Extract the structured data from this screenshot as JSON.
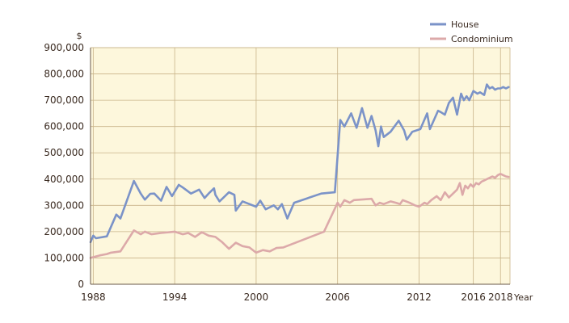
{
  "chart_data": {
    "type": "line",
    "title": "",
    "ylabel": "$",
    "xlabel": "Year",
    "ylim": [
      0,
      900000
    ],
    "xlim": [
      1987.8,
      2018.7
    ],
    "x_ticks": [
      1988,
      1994,
      2000,
      2006,
      2012,
      2016,
      2018
    ],
    "y_ticks": [
      0,
      100000,
      200000,
      300000,
      400000,
      500000,
      600000,
      700000,
      800000,
      900000
    ],
    "y_tick_labels": [
      "0",
      "100,000",
      "200,000",
      "300,000",
      "400,000",
      "500,000",
      "600,000",
      "700,000",
      "800,000",
      "900,000"
    ],
    "x_tick_labels": [
      "1988",
      "1994",
      "2000",
      "2006",
      "2012",
      "2016",
      "2018"
    ],
    "grid": true,
    "legend_position": "top-right",
    "colors": {
      "plot_bg": "#fdf7dc",
      "grid": "#c9b48a",
      "axis": "#6a5a4a"
    },
    "series": [
      {
        "name": "House",
        "color": "#7b93c8",
        "x": [
          1987.8,
          1988.0,
          1988.2,
          1988.5,
          1989.0,
          1989.7,
          1990.0,
          1991.0,
          1991.5,
          1991.8,
          1992.2,
          1992.5,
          1993.0,
          1993.4,
          1993.8,
          1994.3,
          1994.6,
          1995.2,
          1995.8,
          1996.2,
          1996.5,
          1996.9,
          1997.0,
          1997.3,
          1998.0,
          1998.4,
          1998.5,
          1999.0,
          1999.5,
          2000.0,
          2000.3,
          2000.7,
          2000.9,
          2001.3,
          2001.6,
          2001.9,
          2002.3,
          2002.8,
          2004.8,
          2005.8,
          2006.2,
          2006.5,
          2007.0,
          2007.4,
          2007.8,
          2008.2,
          2008.5,
          2008.8,
          2009.0,
          2009.2,
          2009.4,
          2009.9,
          2010.5,
          2010.9,
          2011.1,
          2011.5,
          2012.1,
          2012.6,
          2012.8,
          2013.4,
          2013.6,
          2013.9,
          2014.2,
          2014.5,
          2014.8,
          2015.0,
          2015.1,
          2015.3,
          2015.5,
          2015.7,
          2016.0,
          2016.3,
          2016.5,
          2016.8,
          2017.0,
          2017.2,
          2017.4,
          2017.6,
          2017.8,
          2018.0,
          2018.2,
          2018.4,
          2018.6
        ],
        "values": [
          160000,
          185000,
          175000,
          178000,
          182000,
          265000,
          250000,
          393000,
          345000,
          322000,
          344000,
          345000,
          318000,
          370000,
          335000,
          378000,
          368000,
          345000,
          360000,
          328000,
          345000,
          365000,
          340000,
          315000,
          350000,
          340000,
          280000,
          315000,
          305000,
          295000,
          318000,
          285000,
          290000,
          300000,
          285000,
          305000,
          250000,
          310000,
          345000,
          350000,
          625000,
          600000,
          650000,
          595000,
          670000,
          595000,
          640000,
          585000,
          525000,
          600000,
          560000,
          580000,
          622000,
          585000,
          550000,
          580000,
          590000,
          650000,
          590000,
          660000,
          655000,
          645000,
          690000,
          710000,
          645000,
          700000,
          725000,
          700000,
          715000,
          700000,
          735000,
          725000,
          730000,
          720000,
          760000,
          745000,
          750000,
          740000,
          745000,
          745000,
          750000,
          745000,
          750000
        ]
      },
      {
        "name": "Condominium",
        "color": "#dca9a9",
        "x": [
          1987.8,
          1988.5,
          1989.0,
          1989.3,
          1990.0,
          1991.0,
          1991.5,
          1991.8,
          1992.3,
          1993.0,
          1994.0,
          1994.6,
          1995.0,
          1995.5,
          1996.0,
          1996.5,
          1997.0,
          1997.5,
          1998.0,
          1998.5,
          1999.0,
          1999.5,
          2000.0,
          2000.5,
          2001.0,
          2001.5,
          2002.0,
          2005.0,
          2006.0,
          2006.2,
          2006.5,
          2006.9,
          2007.2,
          2008.5,
          2008.8,
          2009.1,
          2009.4,
          2009.9,
          2010.3,
          2010.6,
          2010.8,
          2011.3,
          2011.7,
          2012.0,
          2012.4,
          2012.6,
          2012.9,
          2013.3,
          2013.6,
          2013.9,
          2014.2,
          2014.5,
          2014.8,
          2015.0,
          2015.2,
          2015.4,
          2015.6,
          2015.8,
          2016.0,
          2016.2,
          2016.4,
          2016.6,
          2016.8,
          2017.0,
          2017.2,
          2017.4,
          2017.6,
          2017.8,
          2018.0,
          2018.2,
          2018.4,
          2018.6
        ],
        "values": [
          100000,
          110000,
          115000,
          120000,
          125000,
          205000,
          190000,
          200000,
          190000,
          195000,
          200000,
          190000,
          195000,
          180000,
          198000,
          185000,
          180000,
          160000,
          135000,
          158000,
          145000,
          140000,
          120000,
          130000,
          125000,
          138000,
          140000,
          200000,
          310000,
          295000,
          320000,
          310000,
          320000,
          325000,
          300000,
          310000,
          305000,
          315000,
          310000,
          305000,
          320000,
          310000,
          300000,
          295000,
          310000,
          305000,
          320000,
          335000,
          320000,
          350000,
          330000,
          345000,
          360000,
          385000,
          340000,
          375000,
          365000,
          380000,
          370000,
          385000,
          380000,
          390000,
          395000,
          400000,
          405000,
          410000,
          405000,
          415000,
          420000,
          415000,
          410000,
          408000
        ]
      }
    ]
  }
}
